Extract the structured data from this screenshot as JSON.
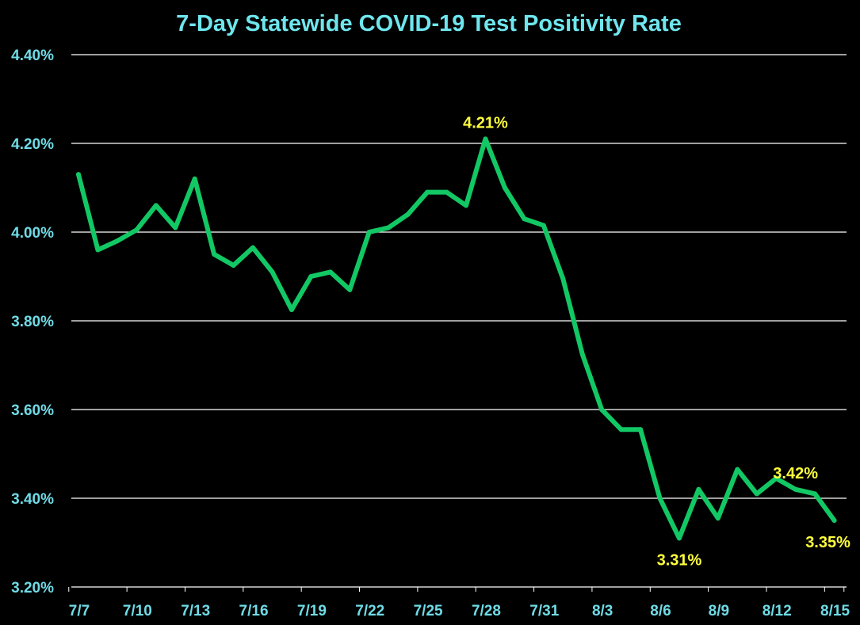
{
  "chart_data": {
    "type": "line",
    "title": "7-Day Statewide COVID-19 Test Positivity Rate",
    "xlabel": "",
    "ylabel": "",
    "ylim": [
      3.2,
      4.4
    ],
    "yticks": [
      "3.20%",
      "3.40%",
      "3.60%",
      "3.80%",
      "4.00%",
      "4.20%",
      "4.40%"
    ],
    "xtick_labels": [
      "7/7",
      "7/10",
      "7/13",
      "7/16",
      "7/19",
      "7/22",
      "7/25",
      "7/28",
      "7/31",
      "8/3",
      "8/6",
      "8/9",
      "8/12",
      "8/15"
    ],
    "grid": "horizontal",
    "colors": {
      "background": "#000000",
      "line": "#12c864",
      "title": "#6fe6ee",
      "ticks": "#6fdbe6",
      "annotations": "#ffff3c",
      "grid": "#ffffff"
    },
    "x": [
      "7/7",
      "7/8",
      "7/9",
      "7/10",
      "7/11",
      "7/12",
      "7/13",
      "7/14",
      "7/15",
      "7/16",
      "7/17",
      "7/18",
      "7/19",
      "7/20",
      "7/21",
      "7/22",
      "7/23",
      "7/24",
      "7/25",
      "7/26",
      "7/27",
      "7/28",
      "7/29",
      "7/30",
      "7/31",
      "8/1",
      "8/2",
      "8/3",
      "8/4",
      "8/5",
      "8/6",
      "8/7",
      "8/8",
      "8/9",
      "8/10",
      "8/11",
      "8/12",
      "8/13",
      "8/14",
      "8/15"
    ],
    "values": [
      4.13,
      3.96,
      3.98,
      4.005,
      4.06,
      4.01,
      4.12,
      3.95,
      3.925,
      3.965,
      3.91,
      3.825,
      3.9,
      3.91,
      3.87,
      4.0,
      4.01,
      4.04,
      4.09,
      4.09,
      4.06,
      4.21,
      4.1,
      4.03,
      4.015,
      3.895,
      3.725,
      3.6,
      3.555,
      3.555,
      3.4,
      3.31,
      3.42,
      3.355,
      3.465,
      3.41,
      3.445,
      3.42,
      3.41,
      3.35
    ],
    "annotations": [
      {
        "x": "7/28",
        "text": "4.21%",
        "position": "above"
      },
      {
        "x": "8/7",
        "text": "3.31%",
        "position": "below"
      },
      {
        "x": "8/13",
        "text": "3.42%",
        "position": "above"
      },
      {
        "x": "8/15",
        "text": "3.35%",
        "position": "below"
      }
    ]
  }
}
